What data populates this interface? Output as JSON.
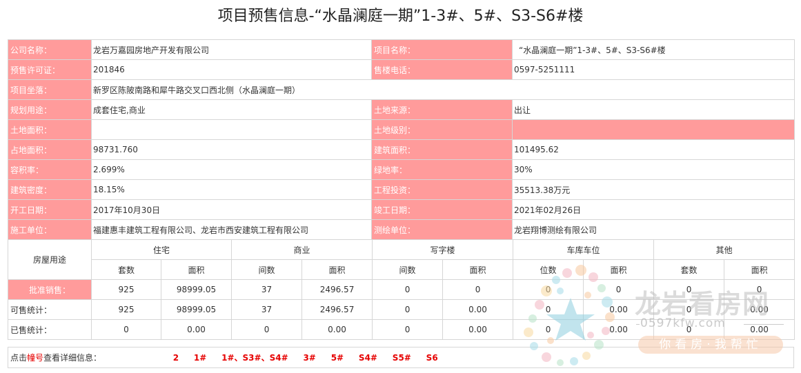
{
  "page_title": "项目预售信息-“水晶澜庭一期”1-3#、5#、S3-S6#楼",
  "info": {
    "company_label": "公司名称：",
    "company_value": "龙岩万嘉园房地产开发有限公司",
    "project_label": "项目名称：",
    "project_value": "“水晶澜庭一期”1-3#、5#、S3-S6#楼",
    "permit_label": "预售许可证：",
    "permit_value": "201846",
    "phone_label": "售楼电话：",
    "phone_value": "0597-5251111",
    "location_label": "项目坐落：",
    "location_value": "新罗区陈陂南路和犀牛路交叉口西北侧（水晶澜庭一期）",
    "usage_label": "规划用途：",
    "usage_value": "成套住宅,商业",
    "land_source_label": "土地来源：",
    "land_source_value": "出让",
    "land_area_label": "土地面积：",
    "land_area_value": "",
    "land_grade_label": "土地级别：",
    "land_grade_value": "",
    "site_area_label": "占地面积：",
    "site_area_value": "98731.760",
    "building_area_label": "建筑面积：",
    "building_area_value": "101495.62",
    "plot_ratio_label": "容积率：",
    "plot_ratio_value": "2.699%",
    "green_ratio_label": "绿地率：",
    "green_ratio_value": "30%",
    "density_label": "建筑密度：",
    "density_value": "18.15%",
    "investment_label": "工程投资：",
    "investment_value": "35513.38万元",
    "start_label": "开工日期：",
    "start_value": "2017年10月30日",
    "finish_label": "竣工日期：",
    "finish_value": "2021年02月26日",
    "builder_label": "施工单位：",
    "builder_value": "福建惠丰建筑工程有限公司、龙岩市西安建筑工程有限公司",
    "surveyor_label": "测绘单位：",
    "surveyor_value": "龙岩翔博测绘有限公司"
  },
  "sales": {
    "usage_header": "房屋用途",
    "groups": [
      "住宅",
      "商业",
      "写字楼",
      "车库车位",
      "其他"
    ],
    "subheaders": [
      "套数",
      "面积",
      "间数",
      "面积",
      "间数",
      "面积",
      "位数",
      "面积",
      "套数",
      "面积"
    ],
    "rows": [
      {
        "label": "批准销售：",
        "values": [
          "925",
          "98999.05",
          "37",
          "2496.57",
          "0",
          "0",
          "0",
          "0",
          "0",
          "0"
        ]
      },
      {
        "label": "可售统计：",
        "values": [
          "925",
          "98999.05",
          "37",
          "2496.57",
          "0",
          "0.00",
          "0",
          "0.00",
          "0",
          "0.00"
        ]
      },
      {
        "label": "已售统计：",
        "values": [
          "0",
          "0.00",
          "0",
          "0.00",
          "0",
          "0.00",
          "0",
          "0.00",
          "0",
          "0.00"
        ]
      }
    ]
  },
  "links": {
    "prefix": "点击",
    "highlight": "幢号",
    "suffix": "查看详细信息：",
    "buildings": [
      "2",
      "1#",
      "1#、S3#、S4#",
      "3#",
      "5#",
      "S4#",
      "S5#",
      "S6"
    ]
  },
  "watermark": {
    "title": "龙岩看房网",
    "url": "0597kfw.com",
    "slogan": "你看房·我帮忙"
  },
  "colors": {
    "label_bg": "#ff9b9b",
    "link_red": "#e60000",
    "border": "#d6d6d6"
  }
}
